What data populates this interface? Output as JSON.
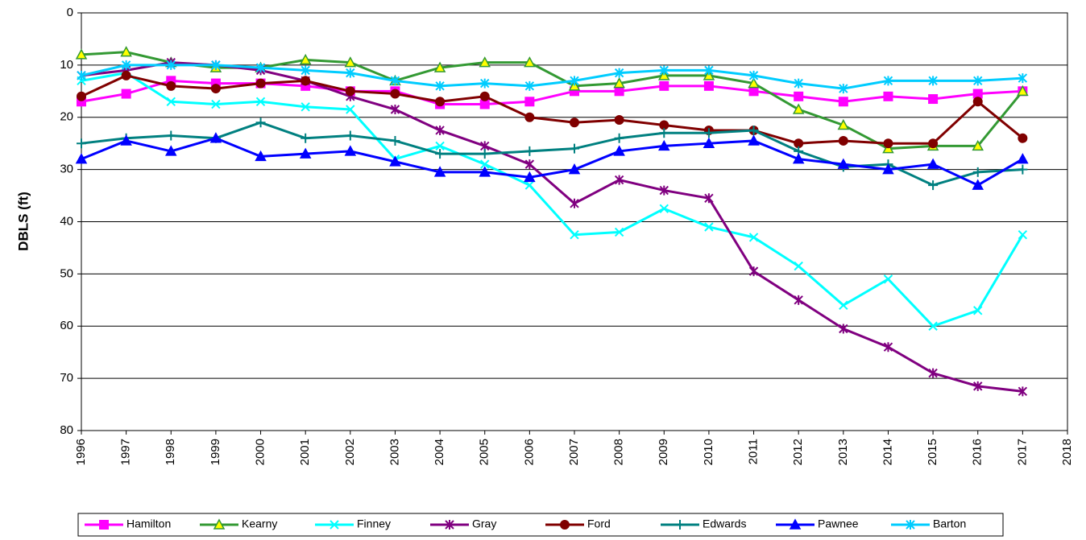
{
  "chart_data": {
    "type": "line",
    "y_label": "DBLS (ft)",
    "x": [
      1996,
      1997,
      1998,
      1999,
      2000,
      2001,
      2002,
      2003,
      2004,
      2005,
      2006,
      2007,
      2008,
      2009,
      2010,
      2011,
      2012,
      2013,
      2014,
      2015,
      2016,
      2017
    ],
    "xlim": [
      1996,
      2018
    ],
    "xticks": [
      1996,
      1997,
      1998,
      1999,
      2000,
      2001,
      2002,
      2003,
      2004,
      2005,
      2006,
      2007,
      2008,
      2009,
      2010,
      2011,
      2012,
      2013,
      2014,
      2015,
      2016,
      2017,
      2018
    ],
    "ylim": [
      0,
      80
    ],
    "yticks": [
      0,
      10,
      20,
      30,
      40,
      50,
      60,
      70,
      80
    ],
    "y_inverted": true,
    "grid": true,
    "legend": "bottom",
    "series": [
      {
        "name": "Hamilton",
        "color": "#ff00ff",
        "marker": "square",
        "values": [
          17,
          15.5,
          13,
          13.5,
          13.5,
          14,
          15,
          15,
          17.5,
          17.5,
          17,
          15,
          15,
          14,
          14,
          15,
          16,
          17,
          16,
          16.5,
          15.5,
          15
        ]
      },
      {
        "name": "Kearny",
        "color": "#339933",
        "marker": "triangle",
        "values": [
          8,
          7.5,
          9.5,
          10.5,
          10.5,
          9,
          9.5,
          13,
          10.5,
          9.5,
          9.5,
          14,
          13.5,
          12,
          12,
          13.5,
          18.5,
          21.5,
          26,
          25.5,
          25.5,
          15
        ]
      },
      {
        "name": "Finney",
        "color": "#00ffff",
        "marker": "x",
        "values": [
          13,
          11.5,
          17,
          17.5,
          17,
          18,
          18.5,
          28,
          25.5,
          29,
          33,
          42.5,
          42,
          37.5,
          41,
          43,
          48.5,
          56,
          51,
          60,
          57,
          42.5
        ]
      },
      {
        "name": "Gray",
        "color": "#800080",
        "marker": "asterisk",
        "values": [
          12,
          11,
          9.5,
          10,
          11,
          13,
          16,
          18.5,
          22.5,
          25.5,
          29,
          36.5,
          32,
          34,
          35.5,
          49.5,
          55,
          60.5,
          64,
          69,
          71.5,
          72.5
        ]
      },
      {
        "name": "Ford",
        "color": "#800000",
        "marker": "circle",
        "values": [
          16,
          12,
          14,
          14.5,
          13.5,
          13,
          15,
          15.5,
          17,
          16,
          20,
          21,
          20.5,
          21.5,
          22.5,
          22.5,
          25,
          24.5,
          25,
          25,
          17,
          24
        ]
      },
      {
        "name": "Edwards",
        "color": "#008080",
        "marker": "plus",
        "values": [
          25,
          24,
          23.5,
          24,
          21,
          24,
          23.5,
          24.5,
          27,
          27,
          26.5,
          26,
          24,
          23,
          23,
          22.5,
          26.5,
          29.5,
          29,
          33,
          30.5,
          30
        ]
      },
      {
        "name": "Pawnee",
        "color": "#0000ff",
        "marker": "triangle",
        "values": [
          28,
          24.5,
          26.5,
          24,
          27.5,
          27,
          26.5,
          28.5,
          30.5,
          30.5,
          31.5,
          30,
          26.5,
          25.5,
          25,
          24.5,
          28,
          29,
          30,
          29,
          33,
          28
        ]
      },
      {
        "name": "Barton",
        "color": "#00ccff",
        "marker": "asterisk",
        "values": [
          12,
          10,
          10,
          10,
          10.5,
          11,
          11.5,
          13,
          14,
          13.5,
          14,
          13,
          11.5,
          11,
          11,
          12,
          13.5,
          14.5,
          13,
          13,
          13,
          12.5
        ]
      }
    ]
  }
}
